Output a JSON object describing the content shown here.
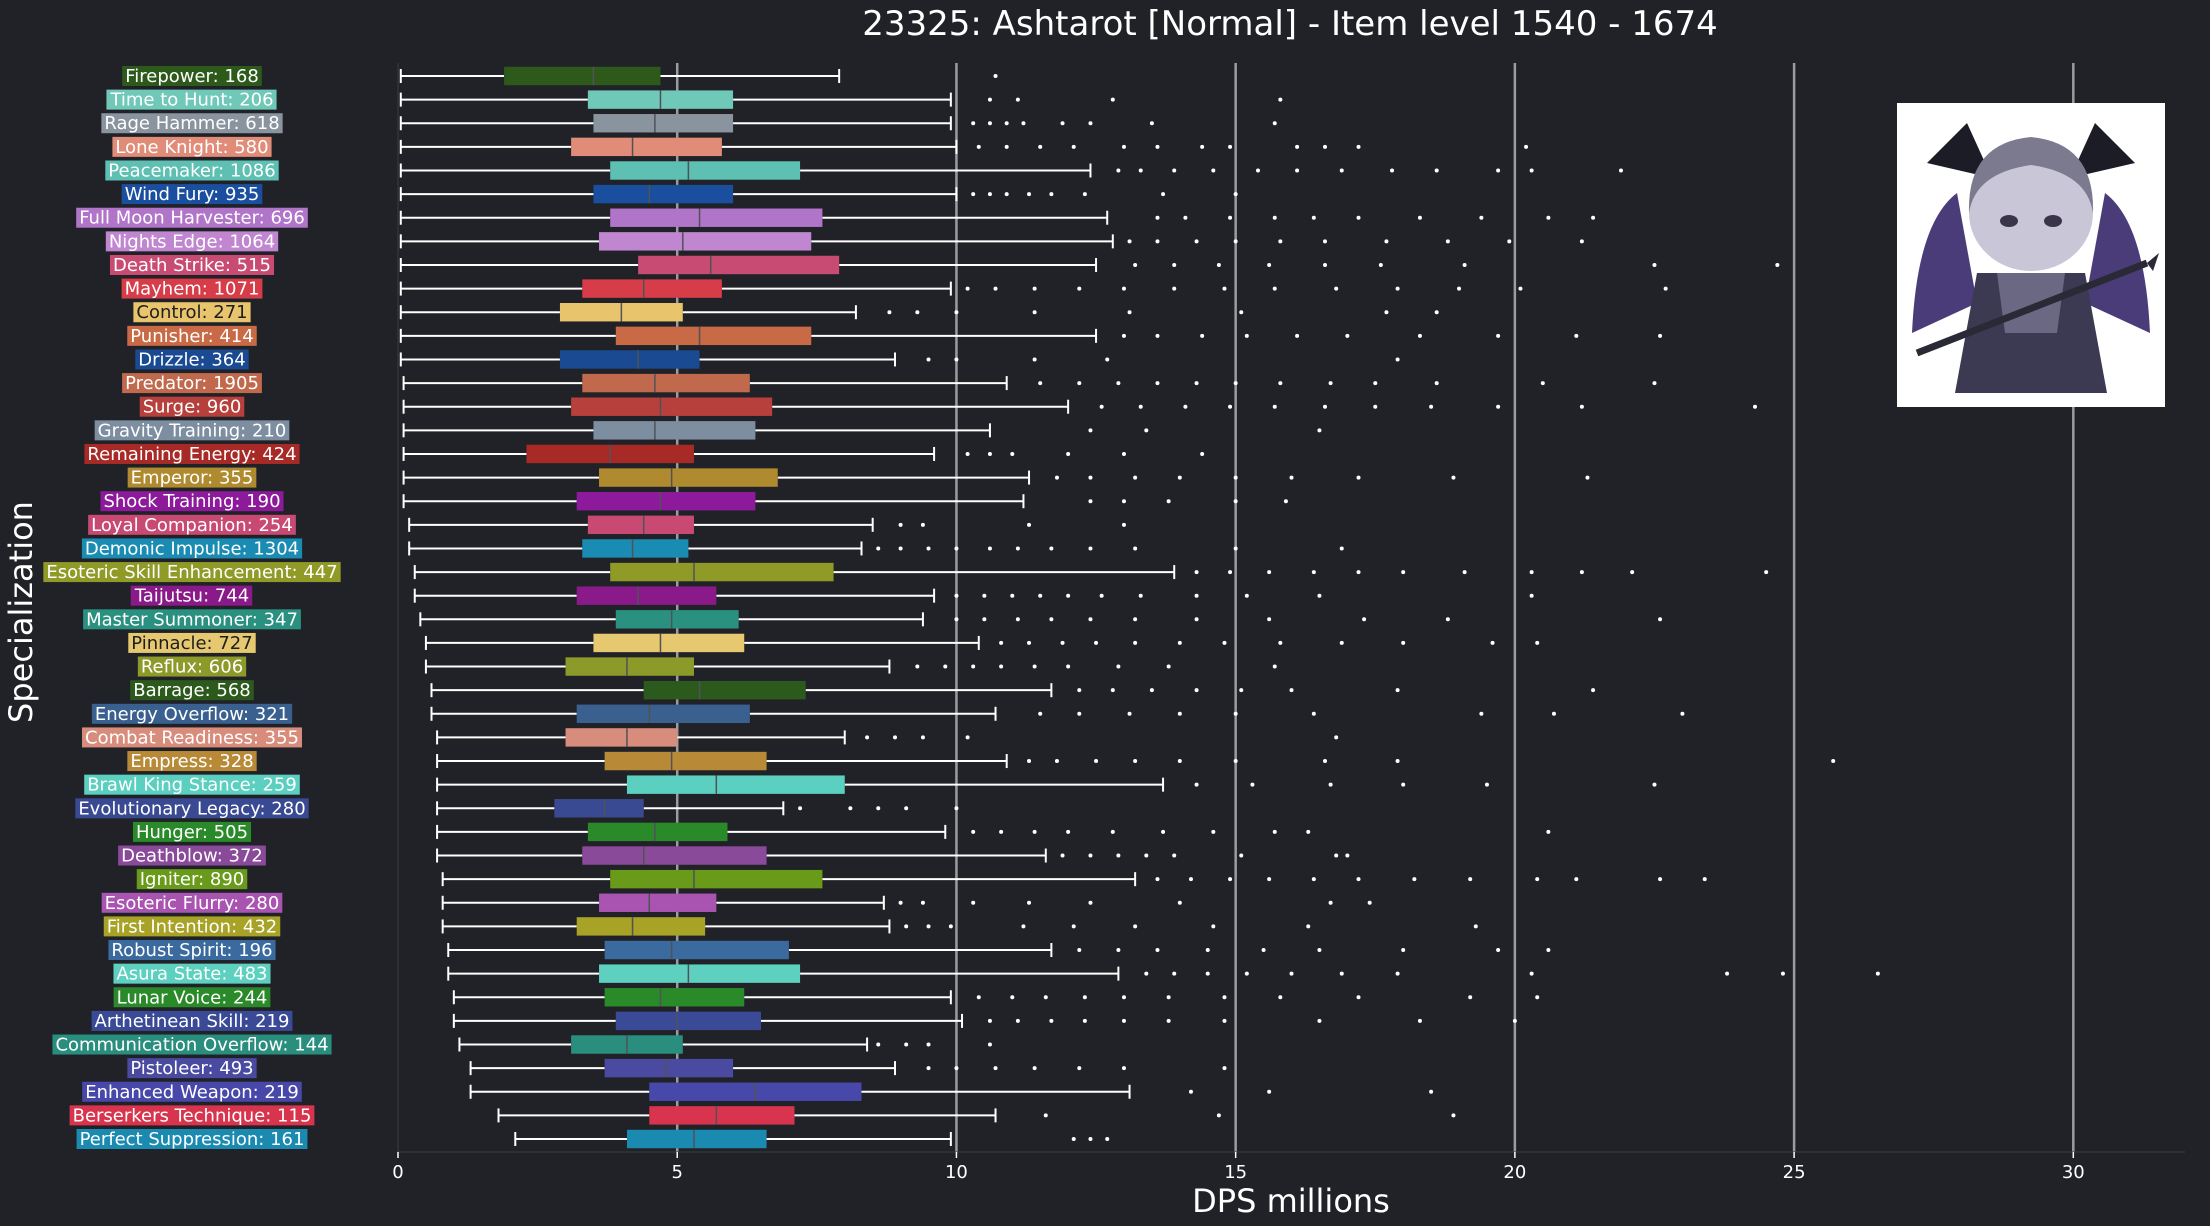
{
  "chart_data": {
    "type": "boxplot",
    "title": "23325: Ashtarot [Normal] - Item level 1540 - 1674",
    "xlabel": "DPS millions",
    "ylabel": "Specialization",
    "xlim": [
      0,
      32
    ],
    "xticks": [
      0,
      5,
      10,
      15,
      20,
      25,
      30
    ],
    "grid": "vertical major lines",
    "image": "character-portrait-icon",
    "series": [
      {
        "name": "Firepower: 168",
        "color": "#2d5a1b",
        "min": 0.05,
        "q1": 1.9,
        "median": 3.5,
        "q3": 4.7,
        "max": 7.9,
        "outliers": [
          10.7
        ]
      },
      {
        "name": "Time to Hunt: 206",
        "color": "#6fc8b8",
        "min": 0.05,
        "q1": 3.4,
        "median": 4.7,
        "q3": 6.0,
        "max": 9.9,
        "outliers": [
          10.6,
          11.1,
          12.8,
          15.8
        ]
      },
      {
        "name": "Rage Hammer: 618",
        "color": "#8a949e",
        "min": 0.05,
        "q1": 3.5,
        "median": 4.6,
        "q3": 6.0,
        "max": 9.9,
        "outliers": [
          10.3,
          10.6,
          10.9,
          11.2,
          11.9,
          12.4,
          13.5,
          15.7
        ]
      },
      {
        "name": "Lone Knight: 580",
        "color": "#e08c78",
        "min": 0.05,
        "q1": 3.1,
        "median": 4.2,
        "q3": 5.8,
        "max": 10.0,
        "outliers": [
          10.4,
          10.9,
          11.5,
          12.1,
          13.0,
          13.6,
          14.4,
          14.9,
          16.1,
          16.6,
          17.2,
          20.2
        ]
      },
      {
        "name": "Peacemaker: 1086",
        "color": "#5dc0b2",
        "min": 0.05,
        "q1": 3.8,
        "median": 5.2,
        "q3": 7.2,
        "max": 12.4,
        "outliers": [
          12.9,
          13.3,
          13.9,
          14.6,
          15.4,
          16.1,
          16.9,
          17.8,
          18.6,
          19.7,
          20.3,
          21.9
        ]
      },
      {
        "name": "Wind Fury: 935",
        "color": "#1a4fa0",
        "min": 0.05,
        "q1": 3.5,
        "median": 4.5,
        "q3": 6.0,
        "max": 10.0,
        "outliers": [
          10.3,
          10.6,
          10.9,
          11.3,
          11.7,
          12.3,
          13.7,
          15.0
        ]
      },
      {
        "name": "Full Moon Harvester: 696",
        "color": "#b074c8",
        "min": 0.05,
        "q1": 3.8,
        "median": 5.4,
        "q3": 7.6,
        "max": 12.7,
        "outliers": [
          13.6,
          14.1,
          14.9,
          15.7,
          16.4,
          17.2,
          18.3,
          19.4,
          20.6,
          21.4
        ]
      },
      {
        "name": "Nights Edge: 1064",
        "color": "#c086d0",
        "min": 0.05,
        "q1": 3.6,
        "median": 5.1,
        "q3": 7.4,
        "max": 12.8,
        "outliers": [
          13.1,
          13.6,
          14.3,
          15.0,
          15.8,
          16.6,
          17.7,
          18.8,
          19.9,
          21.2
        ]
      },
      {
        "name": "Death Strike: 515",
        "color": "#c84b74",
        "min": 0.05,
        "q1": 4.3,
        "median": 5.6,
        "q3": 7.9,
        "max": 12.5,
        "outliers": [
          13.2,
          13.9,
          14.7,
          15.6,
          16.6,
          17.6,
          19.1,
          22.5,
          24.7
        ]
      },
      {
        "name": "Mayhem: 1071",
        "color": "#d63d48",
        "min": 0.05,
        "q1": 3.3,
        "median": 4.4,
        "q3": 5.8,
        "max": 9.9,
        "outliers": [
          10.2,
          10.7,
          11.4,
          12.2,
          13.0,
          13.9,
          14.8,
          15.7,
          16.8,
          17.9,
          19.0,
          20.1,
          22.7
        ]
      },
      {
        "name": "Control: 271",
        "color": "#e8c46c",
        "min": 0.05,
        "q1": 2.9,
        "median": 4.0,
        "q3": 5.1,
        "max": 8.2,
        "outliers": [
          8.8,
          9.3,
          10.0,
          11.4,
          13.1,
          15.1,
          17.7,
          18.6
        ]
      },
      {
        "name": "Punisher: 414",
        "color": "#c86a46",
        "min": 0.05,
        "q1": 3.9,
        "median": 5.4,
        "q3": 7.4,
        "max": 12.5,
        "outliers": [
          13.0,
          13.6,
          14.4,
          15.2,
          16.1,
          17.0,
          18.3,
          19.7,
          21.1,
          22.6
        ]
      },
      {
        "name": "Drizzle: 364",
        "color": "#1a4a92",
        "min": 0.05,
        "q1": 2.9,
        "median": 4.3,
        "q3": 5.4,
        "max": 8.9,
        "outliers": [
          9.5,
          10.0,
          11.4,
          12.7,
          17.9
        ]
      },
      {
        "name": "Predator: 1905",
        "color": "#c0694c",
        "min": 0.1,
        "q1": 3.3,
        "median": 4.6,
        "q3": 6.3,
        "max": 10.9,
        "outliers": [
          11.5,
          12.2,
          12.9,
          13.6,
          14.3,
          15.0,
          15.8,
          16.7,
          17.5,
          18.6,
          20.5,
          22.5
        ]
      },
      {
        "name": "Surge: 960",
        "color": "#b8403c",
        "min": 0.1,
        "q1": 3.1,
        "median": 4.7,
        "q3": 6.7,
        "max": 12.0,
        "outliers": [
          12.6,
          13.3,
          14.1,
          14.9,
          15.7,
          16.6,
          17.5,
          18.5,
          19.7,
          21.2,
          24.3
        ]
      },
      {
        "name": "Gravity Training: 210",
        "color": "#7d8ea0",
        "min": 0.1,
        "q1": 3.5,
        "median": 4.6,
        "q3": 6.4,
        "max": 10.6,
        "outliers": [
          12.4,
          13.4,
          16.5
        ]
      },
      {
        "name": "Remaining Energy: 424",
        "color": "#a82a26",
        "min": 0.1,
        "q1": 2.3,
        "median": 3.8,
        "q3": 5.3,
        "max": 9.6,
        "outliers": [
          10.2,
          10.6,
          11.0,
          12.0,
          13.0,
          14.4
        ]
      },
      {
        "name": "Emperor: 355",
        "color": "#b08a2e",
        "min": 0.1,
        "q1": 3.6,
        "median": 4.9,
        "q3": 6.8,
        "max": 11.3,
        "outliers": [
          11.8,
          12.4,
          13.2,
          14.0,
          15.0,
          16.0,
          17.2,
          18.9,
          21.3
        ]
      },
      {
        "name": "Shock Training: 190",
        "color": "#8c1a9a",
        "min": 0.1,
        "q1": 3.2,
        "median": 4.7,
        "q3": 6.4,
        "max": 11.2,
        "outliers": [
          12.4,
          13.0,
          13.8,
          15.0,
          15.9
        ]
      },
      {
        "name": "Loyal Companion: 254",
        "color": "#c84a72",
        "min": 0.2,
        "q1": 3.4,
        "median": 4.4,
        "q3": 5.3,
        "max": 8.5,
        "outliers": [
          9.0,
          9.4,
          11.3,
          13.0
        ]
      },
      {
        "name": "Demonic Impulse: 1304",
        "color": "#1a8cb4",
        "min": 0.2,
        "q1": 3.3,
        "median": 4.2,
        "q3": 5.2,
        "max": 8.3,
        "outliers": [
          8.6,
          9.0,
          9.5,
          10.0,
          10.6,
          11.1,
          11.7,
          12.4,
          13.2,
          15.0,
          16.9
        ]
      },
      {
        "name": "Esoteric Skill Enhancement: 447",
        "color": "#909a26",
        "min": 0.3,
        "q1": 3.8,
        "median": 5.3,
        "q3": 7.8,
        "max": 13.9,
        "outliers": [
          14.3,
          14.9,
          15.6,
          16.4,
          17.2,
          18.0,
          19.1,
          20.3,
          21.2,
          22.1,
          24.5
        ]
      },
      {
        "name": "Taijutsu: 744",
        "color": "#8a1a8a",
        "min": 0.3,
        "q1": 3.2,
        "median": 4.3,
        "q3": 5.7,
        "max": 9.6,
        "outliers": [
          10.0,
          10.5,
          11.0,
          11.5,
          12.0,
          12.6,
          13.3,
          14.3,
          15.2,
          16.5,
          20.3
        ]
      },
      {
        "name": "Master Summoner: 347",
        "color": "#2a9080",
        "min": 0.4,
        "q1": 3.9,
        "median": 4.9,
        "q3": 6.1,
        "max": 9.4,
        "outliers": [
          10.0,
          10.5,
          11.1,
          11.7,
          12.4,
          13.2,
          14.3,
          15.6,
          17.3,
          18.8,
          22.6
        ]
      },
      {
        "name": "Pinnacle: 727",
        "color": "#e6c870",
        "min": 0.5,
        "q1": 3.5,
        "median": 4.7,
        "q3": 6.2,
        "max": 10.4,
        "outliers": [
          10.8,
          11.3,
          11.9,
          12.5,
          13.2,
          14.0,
          14.8,
          15.8,
          16.9,
          18.0,
          19.6,
          20.4
        ]
      },
      {
        "name": "Reflux: 606",
        "color": "#8c9a2a",
        "min": 0.5,
        "q1": 3.0,
        "median": 4.1,
        "q3": 5.3,
        "max": 8.8,
        "outliers": [
          9.3,
          9.8,
          10.3,
          10.8,
          11.4,
          12.0,
          12.9,
          13.8,
          15.7
        ]
      },
      {
        "name": "Barrage: 568",
        "color": "#2c5a1c",
        "min": 0.6,
        "q1": 4.4,
        "median": 5.4,
        "q3": 7.3,
        "max": 11.7,
        "outliers": [
          12.2,
          12.8,
          13.5,
          14.3,
          15.1,
          16.0,
          17.9,
          21.4
        ]
      },
      {
        "name": "Energy Overflow: 321",
        "color": "#3a6090",
        "min": 0.6,
        "q1": 3.2,
        "median": 4.5,
        "q3": 6.3,
        "max": 10.7,
        "outliers": [
          11.5,
          12.2,
          13.1,
          14.0,
          15.0,
          16.4,
          19.4,
          20.7,
          23.0
        ]
      },
      {
        "name": "Combat Readiness: 355",
        "color": "#d88c7c",
        "min": 0.7,
        "q1": 3.0,
        "median": 4.1,
        "q3": 5.0,
        "max": 8.0,
        "outliers": [
          8.4,
          8.9,
          9.4,
          10.2,
          16.8
        ]
      },
      {
        "name": "Empress: 328",
        "color": "#b88a38",
        "min": 0.7,
        "q1": 3.7,
        "median": 4.9,
        "q3": 6.6,
        "max": 10.9,
        "outliers": [
          11.3,
          11.8,
          12.5,
          13.2,
          14.0,
          15.0,
          16.6,
          17.9,
          25.7
        ]
      },
      {
        "name": "Brawl King Stance: 259",
        "color": "#5cd0c0",
        "min": 0.7,
        "q1": 4.1,
        "median": 5.7,
        "q3": 8.0,
        "max": 13.7,
        "outliers": [
          14.3,
          15.3,
          16.7,
          18.0,
          19.5,
          22.5
        ]
      },
      {
        "name": "Evolutionary Legacy: 280",
        "color": "#3a4a92",
        "min": 0.7,
        "q1": 2.8,
        "median": 3.7,
        "q3": 4.4,
        "max": 6.9,
        "outliers": [
          7.2,
          8.1,
          8.6,
          9.1,
          10.0
        ]
      },
      {
        "name": "Hunger: 505",
        "color": "#2a8a2a",
        "min": 0.7,
        "q1": 3.4,
        "median": 4.6,
        "q3": 5.9,
        "max": 9.8,
        "outliers": [
          10.3,
          10.8,
          11.4,
          12.0,
          12.8,
          13.7,
          14.6,
          15.7,
          16.3,
          20.6
        ]
      },
      {
        "name": "Deathblow: 372",
        "color": "#8a4a9a",
        "min": 0.7,
        "q1": 3.3,
        "median": 4.4,
        "q3": 6.6,
        "max": 11.6,
        "outliers": [
          11.9,
          12.4,
          12.9,
          13.4,
          13.9,
          15.1,
          16.8,
          17.0
        ]
      },
      {
        "name": "Igniter: 890",
        "color": "#6a9a1a",
        "min": 0.8,
        "q1": 3.8,
        "median": 5.3,
        "q3": 7.6,
        "max": 13.2,
        "outliers": [
          13.6,
          14.2,
          14.9,
          15.6,
          16.4,
          17.2,
          18.2,
          19.2,
          20.4,
          21.1,
          22.6,
          23.4
        ]
      },
      {
        "name": "Esoteric Flurry: 280",
        "color": "#a854b0",
        "min": 0.8,
        "q1": 3.6,
        "median": 4.5,
        "q3": 5.7,
        "max": 8.7,
        "outliers": [
          9.0,
          9.4,
          10.3,
          11.3,
          12.4,
          14.0,
          16.7,
          17.4
        ]
      },
      {
        "name": "First Intention: 432",
        "color": "#a8a226",
        "min": 0.8,
        "q1": 3.2,
        "median": 4.2,
        "q3": 5.5,
        "max": 8.8,
        "outliers": [
          9.1,
          9.5,
          9.9,
          11.2,
          12.1,
          13.2,
          14.6,
          16.3,
          19.3
        ]
      },
      {
        "name": "Robust Spirit: 196",
        "color": "#3a6a9e",
        "min": 0.9,
        "q1": 3.7,
        "median": 4.9,
        "q3": 7.0,
        "max": 11.7,
        "outliers": [
          12.2,
          12.9,
          13.6,
          14.5,
          15.5,
          16.5,
          18.0,
          19.7,
          20.6
        ]
      },
      {
        "name": "Asura State: 483",
        "color": "#5ed0c0",
        "min": 0.9,
        "q1": 3.6,
        "median": 5.2,
        "q3": 7.2,
        "max": 12.9,
        "outliers": [
          13.4,
          13.9,
          14.5,
          15.2,
          16.0,
          16.9,
          17.9,
          20.3,
          23.8,
          24.8,
          26.5
        ]
      },
      {
        "name": "Lunar Voice: 244",
        "color": "#2a8a2a",
        "min": 1.0,
        "q1": 3.7,
        "median": 4.7,
        "q3": 6.2,
        "max": 9.9,
        "outliers": [
          10.4,
          11.0,
          11.6,
          12.3,
          13.0,
          13.8,
          14.8,
          15.8,
          17.2,
          19.2,
          20.4
        ]
      },
      {
        "name": "Arthetinean Skill: 219",
        "color": "#3a4a96",
        "min": 1.0,
        "q1": 3.9,
        "median": 5.0,
        "q3": 6.5,
        "max": 10.1,
        "outliers": [
          10.6,
          11.1,
          11.7,
          12.3,
          13.0,
          13.8,
          14.8,
          16.5,
          18.3,
          20.0
        ]
      },
      {
        "name": "Communication Overflow: 144",
        "color": "#2a8e7e",
        "min": 1.1,
        "q1": 3.1,
        "median": 4.1,
        "q3": 5.1,
        "max": 8.4,
        "outliers": [
          8.6,
          9.1,
          9.5,
          10.6
        ]
      },
      {
        "name": "Pistoleer: 493",
        "color": "#4a4aa0",
        "min": 1.3,
        "q1": 3.7,
        "median": 4.8,
        "q3": 6.0,
        "max": 8.9,
        "outliers": [
          9.5,
          10.0,
          10.7,
          11.4,
          12.2,
          13.0,
          14.8
        ]
      },
      {
        "name": "Enhanced Weapon: 219",
        "color": "#4848aa",
        "min": 1.3,
        "q1": 4.5,
        "median": 6.4,
        "q3": 8.3,
        "max": 13.1,
        "outliers": [
          14.2,
          15.6,
          18.5
        ]
      },
      {
        "name": "Berserkers Technique: 115",
        "color": "#d8344e",
        "min": 1.8,
        "q1": 4.5,
        "median": 5.7,
        "q3": 7.1,
        "max": 10.7,
        "outliers": [
          11.6,
          14.7,
          18.9
        ]
      },
      {
        "name": "Perfect Suppression: 161",
        "color": "#1a8ab0",
        "min": 2.1,
        "q1": 4.1,
        "median": 5.3,
        "q3": 6.6,
        "max": 9.9,
        "outliers": [
          12.1,
          12.4,
          12.7
        ]
      }
    ]
  }
}
